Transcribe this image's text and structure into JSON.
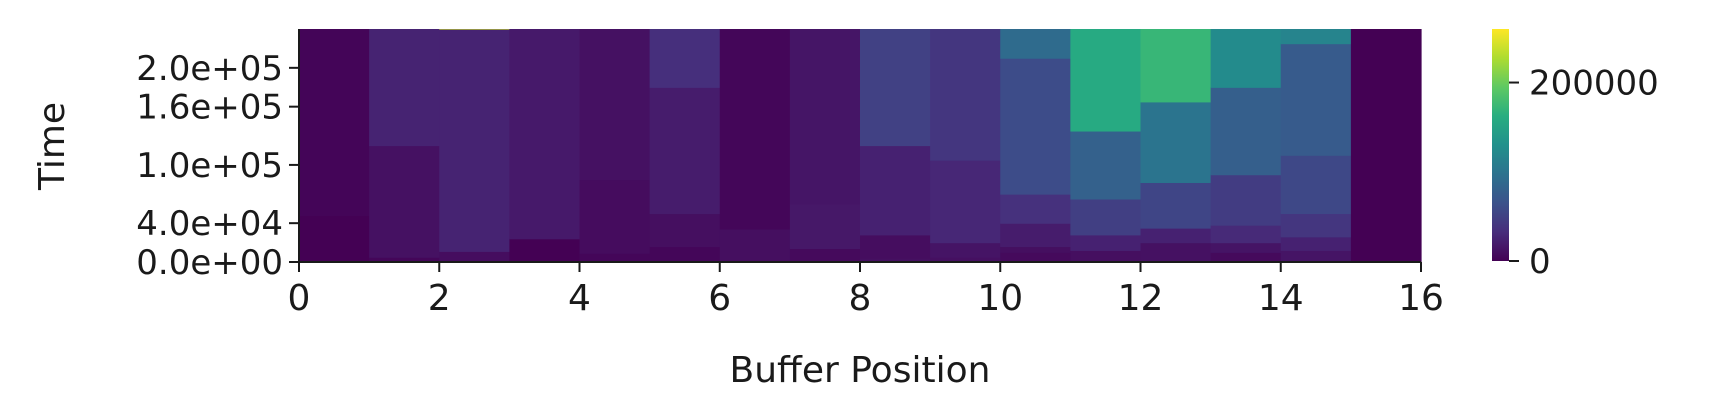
{
  "chart_data": {
    "type": "heatmap",
    "xlabel": "Buffer Position",
    "ylabel": "Time",
    "xlim": [
      0,
      16
    ],
    "ylim": [
      0,
      240000
    ],
    "x_ticks": [
      0,
      2,
      4,
      6,
      8,
      10,
      12,
      14,
      16
    ],
    "x_tick_labels": [
      "0",
      "2",
      "4",
      "6",
      "8",
      "10",
      "12",
      "14",
      "16"
    ],
    "y_ticks": [
      0,
      40000,
      100000,
      160000,
      200000
    ],
    "y_tick_labels": [
      "0.0e+00",
      "4.0e+04",
      "1.0e+05",
      "1.6e+05",
      "2.0e+05"
    ],
    "colorbar": {
      "colormap": "viridis",
      "range": [
        0,
        260000
      ],
      "ticks": [
        0,
        200000
      ],
      "tick_labels": [
        "0",
        "200000"
      ]
    },
    "grid": false,
    "bins": [
      [
        [
          0,
          0
        ],
        [
          48000,
          3000
        ],
        [
          240000,
          76000
        ]
      ],
      [
        [
          0,
          4000
        ],
        [
          5000,
          12000
        ],
        [
          120000,
          25000
        ],
        [
          240000,
          138000
        ]
      ],
      [
        [
          0,
          9000
        ],
        [
          11000,
          25000
        ],
        [
          240000,
          238000
        ],
        [
          243000,
          250000
        ]
      ],
      [
        [
          0,
          0
        ],
        [
          24000,
          18000
        ],
        [
          240000,
          45000
        ]
      ],
      [
        [
          0,
          4000
        ],
        [
          9000,
          8000
        ],
        [
          85000,
          12000
        ],
        [
          240000,
          102000
        ]
      ],
      [
        [
          0,
          4000
        ],
        [
          16000,
          10000
        ],
        [
          50000,
          20000
        ],
        [
          180000,
          34000
        ],
        [
          240000,
          185000
        ]
      ],
      [
        [
          0,
          6000
        ],
        [
          2000,
          10000
        ],
        [
          34000,
          4000
        ],
        [
          240000,
          60000
        ]
      ],
      [
        [
          0,
          7000
        ],
        [
          14000,
          17000
        ],
        [
          60000,
          15000
        ],
        [
          240000,
          85000
        ]
      ],
      [
        [
          0,
          11000
        ],
        [
          4000,
          9000
        ],
        [
          28000,
          24000
        ],
        [
          120000,
          50000
        ],
        [
          240000,
          165000
        ]
      ],
      [
        [
          0,
          11000
        ],
        [
          5000,
          14000
        ],
        [
          20000,
          28000
        ],
        [
          105000,
          40000
        ],
        [
          240000,
          118000
        ]
      ],
      [
        [
          0,
          7000
        ],
        [
          10000,
          10000
        ],
        [
          16000,
          20000
        ],
        [
          40000,
          36000
        ],
        [
          70000,
          60000
        ],
        [
          210000,
          90000
        ],
        [
          240000,
          225000
        ]
      ],
      [
        [
          0,
          10000
        ],
        [
          12000,
          24000
        ],
        [
          28000,
          48000
        ],
        [
          65000,
          80000
        ],
        [
          135000,
          158000
        ],
        [
          240000,
          166000
        ]
      ],
      [
        [
          0,
          12000
        ],
        [
          20000,
          24000
        ],
        [
          35000,
          54000
        ],
        [
          82000,
          100000
        ],
        [
          165000,
          172000
        ],
        [
          240000,
          190000
        ]
      ],
      [
        [
          0,
          7000
        ],
        [
          10000,
          14000
        ],
        [
          20000,
          30000
        ],
        [
          38000,
          46000
        ],
        [
          90000,
          78000
        ],
        [
          180000,
          124000
        ],
        [
          240000,
          208000
        ]
      ],
      [
        [
          0,
          14000
        ],
        [
          12000,
          24000
        ],
        [
          26000,
          40000
        ],
        [
          50000,
          56000
        ],
        [
          110000,
          74000
        ],
        [
          225000,
          116000
        ],
        [
          240000,
          250000
        ]
      ],
      [
        [
          0,
          0
        ],
        [
          240000,
          0
        ]
      ]
    ]
  }
}
